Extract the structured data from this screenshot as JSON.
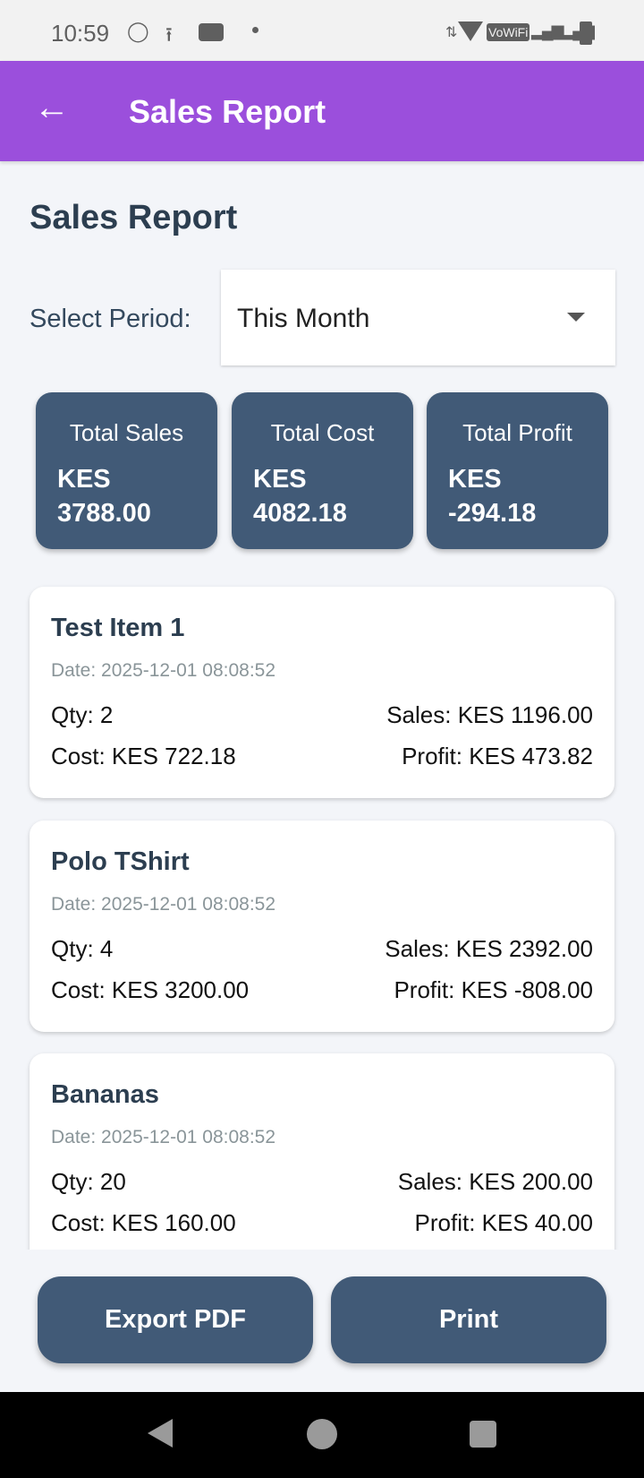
{
  "status_bar": {
    "time": "10:59",
    "vowifi": "VoWiFi"
  },
  "app_bar": {
    "title": "Sales Report"
  },
  "page": {
    "title": "Sales Report",
    "period_label": "Select Period:",
    "period_value": "This Month"
  },
  "summary": [
    {
      "title": "Total Sales",
      "currency": "KES",
      "value": "3788.00"
    },
    {
      "title": "Total Cost",
      "currency": "KES",
      "value": "4082.18"
    },
    {
      "title": "Total Profit",
      "currency": "KES",
      "value": "-294.18"
    }
  ],
  "items": [
    {
      "name": "Test Item 1",
      "date": "Date: 2025-12-01 08:08:52",
      "qty": "Qty: 2",
      "sales": "Sales: KES 1196.00",
      "cost": "Cost: KES 722.18",
      "profit": "Profit: KES 473.82"
    },
    {
      "name": "Polo TShirt",
      "date": "Date: 2025-12-01 08:08:52",
      "qty": "Qty: 4",
      "sales": "Sales: KES 2392.00",
      "cost": "Cost: KES 3200.00",
      "profit": "Profit: KES -808.00"
    },
    {
      "name": "Bananas",
      "date": "Date: 2025-12-01 08:08:52",
      "qty": "Qty: 20",
      "sales": "Sales: KES 200.00",
      "cost": "Cost: KES 160.00",
      "profit": "Profit: KES 40.00"
    }
  ],
  "actions": {
    "export": "Export PDF",
    "print": "Print"
  },
  "colors": {
    "app_bar": "#9b4fdc",
    "card": "#415a77",
    "background": "#f3f5f9"
  }
}
